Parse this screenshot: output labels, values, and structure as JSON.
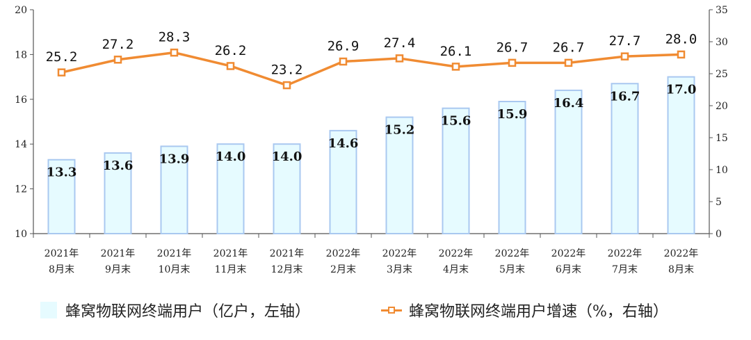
{
  "chart_data": {
    "type": "bar",
    "categories": [
      [
        "2021年",
        "8月末"
      ],
      [
        "2021年",
        "9月末"
      ],
      [
        "2021年",
        "10月末"
      ],
      [
        "2021年",
        "11月末"
      ],
      [
        "2021年",
        "12月末"
      ],
      [
        "2022年",
        "2月末"
      ],
      [
        "2022年",
        "3月末"
      ],
      [
        "2022年",
        "4月末"
      ],
      [
        "2022年",
        "5月末"
      ],
      [
        "2022年",
        "6月末"
      ],
      [
        "2022年",
        "7月末"
      ],
      [
        "2022年",
        "8月末"
      ]
    ],
    "series": [
      {
        "name": "蜂窝物联网终端用户（亿户，左轴）",
        "type": "bar",
        "axis": "left",
        "values": [
          13.3,
          13.6,
          13.9,
          14.0,
          14.0,
          14.6,
          15.2,
          15.6,
          15.9,
          16.4,
          16.7,
          17.0
        ],
        "labels": [
          "13.3",
          "13.6",
          "13.9",
          "14.0",
          "14.0",
          "14.6",
          "15.2",
          "15.6",
          "15.9",
          "16.4",
          "16.7",
          "17.0"
        ],
        "color": "#e6fbff",
        "edge_color": "#a9c8f0"
      },
      {
        "name": "蜂窝物联网终端用户增速（%，右轴）",
        "type": "line",
        "axis": "right",
        "values": [
          25.2,
          27.2,
          28.3,
          26.2,
          23.2,
          26.9,
          27.4,
          26.1,
          26.7,
          26.7,
          27.7,
          28.0
        ],
        "labels": [
          "25.2",
          "27.2",
          "28.3",
          "26.2",
          "23.2",
          "26.9",
          "27.4",
          "26.1",
          "26.7",
          "26.7",
          "27.7",
          "28.0"
        ],
        "color": "#f08b32"
      }
    ],
    "y_left": {
      "lim": [
        10,
        20
      ],
      "ticks": [
        "10",
        "12",
        "14",
        "16",
        "18",
        "20"
      ]
    },
    "y_right": {
      "lim": [
        0,
        35
      ],
      "ticks": [
        "0",
        "5",
        "10",
        "15",
        "20",
        "25",
        "30",
        "35"
      ]
    },
    "grid": false,
    "legend_position": "bottom"
  },
  "legend": {
    "bar_label": "蜂窝物联网终端用户（亿户，左轴）",
    "line_label": "蜂窝物联网终端用户增速（%，右轴）"
  }
}
